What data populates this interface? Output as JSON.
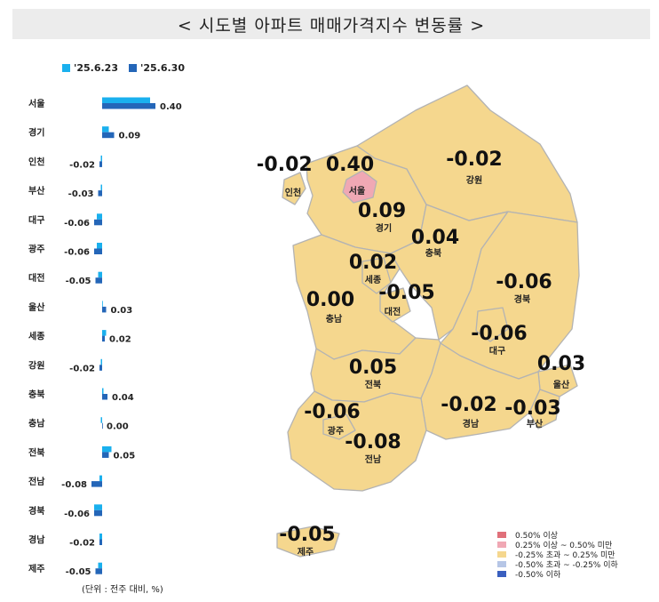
{
  "title": "< 시도별 아파트 매매가격지수 변동률 >",
  "unit_note": "(단위 : 전주 대비, %)",
  "colors": {
    "prev": "#1ab0ee",
    "curr": "#2466b8",
    "map_fill": "#f5d78e",
    "map_seoul": "#f0a8b4",
    "map_border": "#b3b3b3"
  },
  "chart_data": {
    "type": "bar",
    "orientation": "horizontal",
    "categories": [
      "서울",
      "경기",
      "인천",
      "부산",
      "대구",
      "광주",
      "대전",
      "울산",
      "세종",
      "강원",
      "충북",
      "충남",
      "전북",
      "전남",
      "경북",
      "경남",
      "제주"
    ],
    "series": [
      {
        "name": "'25.6.23",
        "values": [
          0.36,
          0.05,
          -0.01,
          -0.01,
          -0.04,
          -0.04,
          -0.03,
          0.0,
          0.03,
          -0.01,
          0.01,
          -0.01,
          0.07,
          -0.02,
          -0.06,
          -0.02,
          -0.03
        ]
      },
      {
        "name": "'25.6.30",
        "values": [
          0.4,
          0.09,
          -0.02,
          -0.03,
          -0.06,
          -0.06,
          -0.05,
          0.03,
          0.02,
          -0.02,
          0.04,
          0.0,
          0.05,
          -0.08,
          -0.06,
          -0.02,
          -0.05
        ]
      }
    ],
    "labels": [
      "0.40",
      "0.09",
      "-0.02",
      "-0.03",
      "-0.06",
      "-0.06",
      "-0.05",
      "0.03",
      "0.02",
      "-0.02",
      "0.04",
      "0.00",
      "0.05",
      "-0.08",
      "-0.06",
      "-0.02",
      "-0.05"
    ]
  },
  "map": {
    "regions": [
      {
        "name": "인천",
        "value": "-0.02"
      },
      {
        "name": "서울",
        "value": "0.40"
      },
      {
        "name": "강원",
        "value": "-0.02"
      },
      {
        "name": "경기",
        "value": "0.09"
      },
      {
        "name": "충북",
        "value": "0.04"
      },
      {
        "name": "세종",
        "value": "0.02"
      },
      {
        "name": "대전",
        "value": "-0.05"
      },
      {
        "name": "충남",
        "value": "0.00"
      },
      {
        "name": "경북",
        "value": "-0.06"
      },
      {
        "name": "대구",
        "value": "-0.06"
      },
      {
        "name": "전북",
        "value": "0.05"
      },
      {
        "name": "울산",
        "value": "0.03"
      },
      {
        "name": "광주",
        "value": "-0.06"
      },
      {
        "name": "경남",
        "value": "-0.02"
      },
      {
        "name": "부산",
        "value": "-0.03"
      },
      {
        "name": "전남",
        "value": "-0.08"
      },
      {
        "name": "제주",
        "value": "-0.05"
      }
    ],
    "legend": [
      {
        "label": "0.50% 이상",
        "color": "#e0707a"
      },
      {
        "label": "0.25% 이상 ~ 0.50% 미만",
        "color": "#f0a8b4"
      },
      {
        "label": "-0.25% 초과 ~ 0.25% 미만",
        "color": "#f5d78e"
      },
      {
        "label": "-0.50% 초과 ~ -0.25% 이하",
        "color": "#b6c6e6"
      },
      {
        "label": "-0.50% 이하",
        "color": "#3a5fbf"
      }
    ]
  }
}
